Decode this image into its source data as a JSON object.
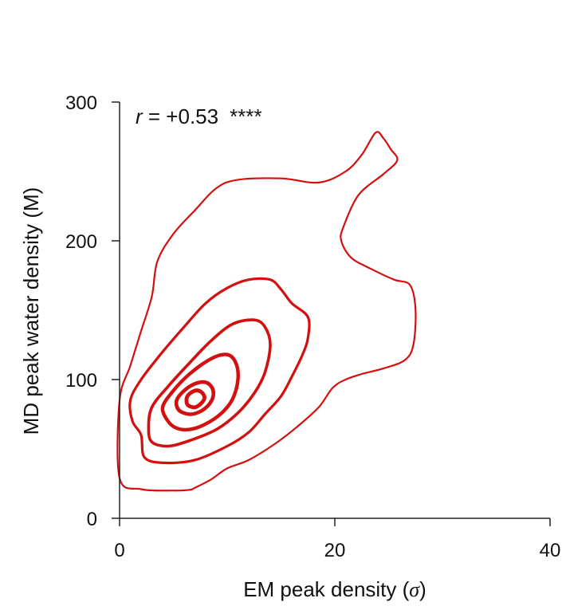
{
  "chart_data": {
    "type": "contour",
    "title": "",
    "xlabel": "EM peak density (",
    "xlabel_symbol": "σ",
    "xlabel_close": ")",
    "ylabel": "MD peak water density (M)",
    "xlim": [
      0,
      40
    ],
    "ylim": [
      0,
      300
    ],
    "x_ticks": [
      0,
      20,
      40
    ],
    "y_ticks": [
      0,
      100,
      200,
      300
    ],
    "x_tick_labels": [
      "0",
      "20",
      "40"
    ],
    "y_tick_labels": [
      "0",
      "100",
      "200",
      "300"
    ],
    "grid": false,
    "legend": "none",
    "color": "#d40f0f",
    "annotation": {
      "r_symbol": "r",
      "r_text": " = +0.53",
      "significance": "****"
    },
    "contours": [
      {
        "level": 1,
        "stroke_width": 2.2,
        "points": [
          [
            0,
            85
          ],
          [
            1,
            110
          ],
          [
            2,
            135
          ],
          [
            3,
            160
          ],
          [
            3.5,
            185
          ],
          [
            5,
            205
          ],
          [
            7,
            222
          ],
          [
            9,
            238
          ],
          [
            11,
            244
          ],
          [
            15,
            245
          ],
          [
            18.5,
            242
          ],
          [
            21,
            250
          ],
          [
            22.5,
            262
          ],
          [
            23.8,
            278
          ],
          [
            24.5,
            274
          ],
          [
            25.2,
            266
          ],
          [
            25.8,
            258
          ],
          [
            24.5,
            248
          ],
          [
            22.2,
            233
          ],
          [
            20.8,
            210
          ],
          [
            20.6,
            200
          ],
          [
            21.5,
            188
          ],
          [
            23.3,
            180
          ],
          [
            25.5,
            172
          ],
          [
            27,
            168
          ],
          [
            27.5,
            150
          ],
          [
            27.3,
            125
          ],
          [
            26.5,
            114
          ],
          [
            24.5,
            108
          ],
          [
            22.5,
            104
          ],
          [
            21,
            100
          ],
          [
            19.8,
            94
          ],
          [
            18.5,
            80
          ],
          [
            16.5,
            66
          ],
          [
            14.5,
            54
          ],
          [
            12,
            42
          ],
          [
            10,
            36
          ],
          [
            8.5,
            28
          ],
          [
            7,
            22
          ],
          [
            6.5,
            20.5
          ],
          [
            5,
            20
          ],
          [
            2,
            21
          ],
          [
            0,
            29
          ]
        ]
      },
      {
        "level": 2,
        "stroke_width": 3.2,
        "points": [
          [
            2,
            60
          ],
          [
            1.2,
            70
          ],
          [
            1,
            85
          ],
          [
            2,
            100
          ],
          [
            4,
            120
          ],
          [
            6,
            138
          ],
          [
            8,
            155
          ],
          [
            10,
            166
          ],
          [
            12,
            172
          ],
          [
            14,
            172
          ],
          [
            15,
            165
          ],
          [
            16,
            155
          ],
          [
            17.5,
            145
          ],
          [
            17.5,
            130
          ],
          [
            17,
            118
          ],
          [
            16,
            102
          ],
          [
            15,
            88
          ],
          [
            13.5,
            75
          ],
          [
            12,
            62
          ],
          [
            10,
            52
          ],
          [
            7,
            42
          ],
          [
            4,
            40
          ],
          [
            2.3,
            44
          ]
        ]
      },
      {
        "level": 3,
        "stroke_width": 3.6,
        "points": [
          [
            3,
            55
          ],
          [
            2.7,
            65
          ],
          [
            3,
            80
          ],
          [
            4.5,
            95
          ],
          [
            6.5,
            112
          ],
          [
            8.5,
            128
          ],
          [
            10.5,
            140
          ],
          [
            12.5,
            143
          ],
          [
            13.5,
            138
          ],
          [
            14,
            125
          ],
          [
            13.5,
            105
          ],
          [
            12.5,
            90
          ],
          [
            11,
            76
          ],
          [
            9,
            64
          ],
          [
            6.5,
            56
          ],
          [
            4.5,
            52
          ]
        ]
      },
      {
        "level": 4,
        "stroke_width": 4.4,
        "points": [
          [
            4.5,
            70
          ],
          [
            4,
            80
          ],
          [
            5,
            92
          ],
          [
            6.5,
            104
          ],
          [
            8.5,
            115
          ],
          [
            10,
            118
          ],
          [
            10.8,
            112
          ],
          [
            11,
            100
          ],
          [
            10.5,
            86
          ],
          [
            9.5,
            76
          ],
          [
            8,
            68
          ],
          [
            6.5,
            64
          ],
          [
            5.3,
            65
          ]
        ]
      },
      {
        "level": 5,
        "stroke_width": 4.6,
        "points": [
          [
            5.5,
            78
          ],
          [
            5.3,
            85
          ],
          [
            6,
            92
          ],
          [
            7,
            97
          ],
          [
            8,
            98
          ],
          [
            8.6,
            94
          ],
          [
            8.7,
            88
          ],
          [
            8.3,
            82
          ],
          [
            7.5,
            77
          ],
          [
            6.5,
            75
          ]
        ]
      },
      {
        "level": 6,
        "stroke_width": 4.8,
        "points": [
          [
            6.3,
            82
          ],
          [
            6.3,
            88
          ],
          [
            7,
            92
          ],
          [
            7.6,
            91
          ],
          [
            7.9,
            87
          ],
          [
            7.6,
            83
          ],
          [
            7,
            80
          ]
        ]
      }
    ]
  }
}
